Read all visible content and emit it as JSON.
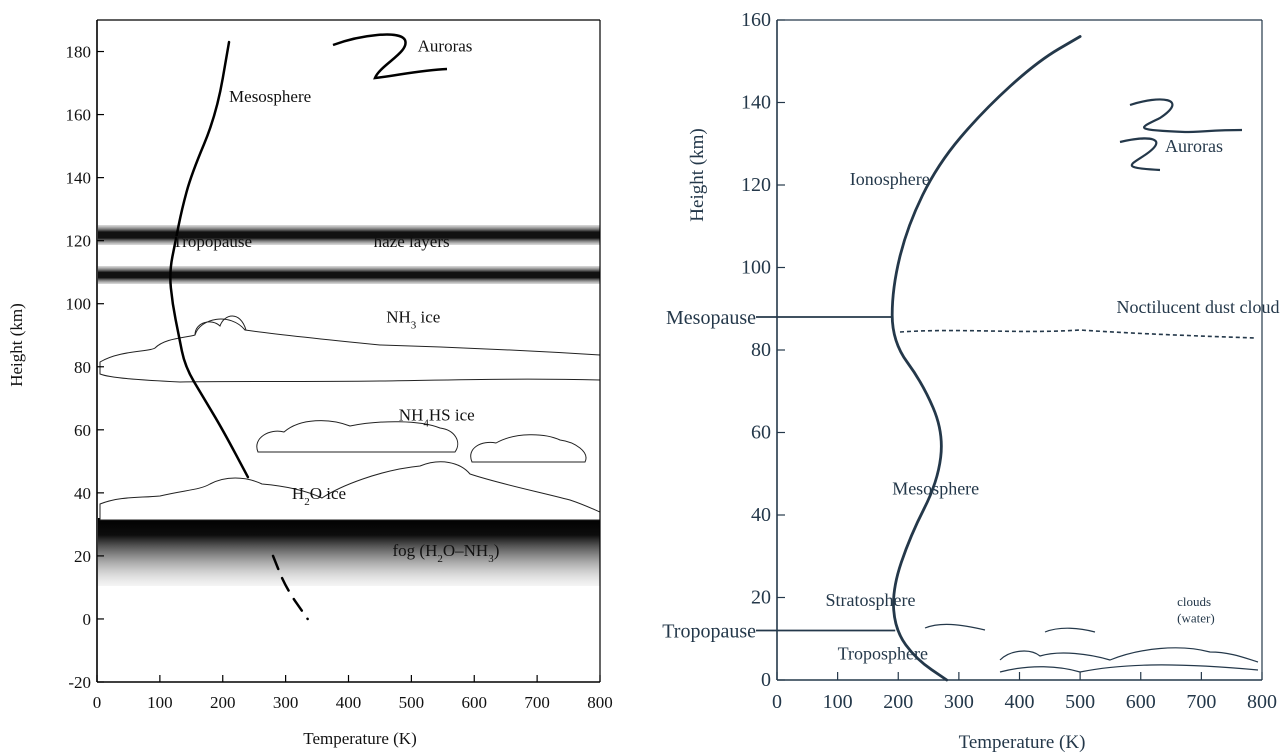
{
  "chart_data": [
    {
      "type": "line",
      "xlabel": "Temperature (K)",
      "ylabel": "Height (km)",
      "xlim": [
        0,
        800
      ],
      "ylim": [
        -20,
        190
      ],
      "x_ticks": [
        0,
        100,
        200,
        300,
        400,
        500,
        600,
        700,
        800
      ],
      "y_ticks": [
        -20,
        0,
        20,
        40,
        60,
        80,
        100,
        120,
        140,
        160,
        180
      ],
      "series": [
        {
          "points": [
            [
              210,
              183
            ],
            [
              190,
              160
            ],
            [
              150,
              141
            ],
            [
              135,
              130
            ],
            [
              125,
              120
            ],
            [
              115,
              110
            ],
            [
              120,
              100
            ],
            [
              130,
              90
            ],
            [
              140,
              80
            ],
            [
              170,
              70
            ],
            [
              200,
              60
            ],
            [
              240,
              45
            ]
          ]
        },
        {
          "style": "dashed",
          "points": [
            [
              280,
              20
            ],
            [
              300,
              10
            ],
            [
              335,
              0
            ]
          ]
        }
      ],
      "haze_layers_km": [
        124,
        111
      ],
      "fog_band_km": [
        32,
        20
      ],
      "annotations": [
        {
          "text": "Auroras",
          "x": 510,
          "y": 180
        },
        {
          "text": "Mesosphere",
          "x": 210,
          "y": 164
        },
        {
          "text": "Tropopause",
          "x": 120,
          "y": 118
        },
        {
          "text": "haze layers",
          "x": 440,
          "y": 118
        },
        {
          "text": "NH3 ice",
          "x": 460,
          "y": 94
        },
        {
          "text": "NH4HS ice",
          "x": 480,
          "y": 63
        },
        {
          "text": "H2O ice",
          "x": 310,
          "y": 38
        },
        {
          "text": "fog (H2O–NH3)",
          "x": 470,
          "y": 20
        }
      ]
    },
    {
      "type": "line",
      "xlabel": "Temperature (K)",
      "ylabel": "Height (km)",
      "xlim": [
        0,
        800
      ],
      "ylim": [
        0,
        160
      ],
      "x_ticks": [
        0,
        100,
        200,
        300,
        400,
        500,
        600,
        700,
        800
      ],
      "y_ticks": [
        0,
        20,
        40,
        60,
        80,
        100,
        120,
        140,
        160
      ],
      "series": [
        {
          "points": [
            [
              280,
              0
            ],
            [
              230,
              5
            ],
            [
              195,
              12
            ],
            [
              190,
              22
            ],
            [
              220,
              35
            ],
            [
              265,
              48
            ],
            [
              275,
              60
            ],
            [
              240,
              72
            ],
            [
              190,
              82
            ],
            [
              190,
              95
            ],
            [
              215,
              110
            ],
            [
              265,
              125
            ],
            [
              340,
              138
            ],
            [
              430,
              150
            ],
            [
              500,
              156
            ]
          ]
        }
      ],
      "level_markers": [
        {
          "label": "Mesopause",
          "height_km": 88
        },
        {
          "label": "Tropopause",
          "height_km": 12
        }
      ],
      "annotations": [
        {
          "text": "Auroras",
          "x": 640,
          "y": 128
        },
        {
          "text": "Ionosphere",
          "x": 120,
          "y": 120
        },
        {
          "text": "Noctilucent dust clouds",
          "x": 560,
          "y": 89
        },
        {
          "text": "Mesosphere",
          "x": 190,
          "y": 45
        },
        {
          "text": "Stratosphere",
          "x": 80,
          "y": 18
        },
        {
          "text": "clouds",
          "x": 660,
          "y": 18
        },
        {
          "text": "(water)",
          "x": 660,
          "y": 14
        },
        {
          "text": "Troposphere",
          "x": 100,
          "y": 5
        }
      ]
    }
  ]
}
